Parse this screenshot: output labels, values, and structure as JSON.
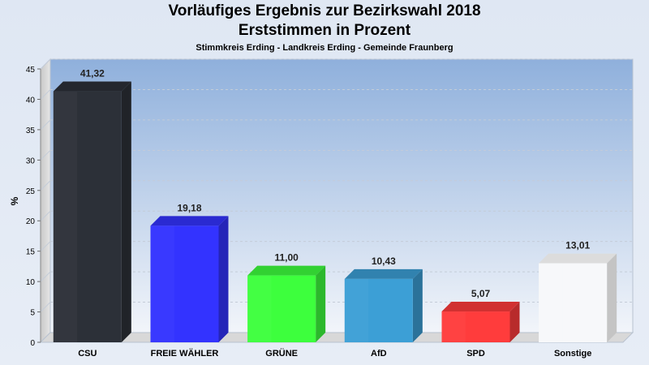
{
  "chart_data": {
    "type": "bar",
    "title": "Vorläufiges Ergebnis zur Bezirkswahl 2018",
    "title2": "Erststimmen in Prozent",
    "subtitle": "Stimmkreis Erding - Landkreis Erding - Gemeinde Fraunberg",
    "xlabel": "",
    "ylabel": "%",
    "ylim": [
      0,
      45
    ],
    "yticks": [
      0,
      5,
      10,
      15,
      20,
      25,
      30,
      35,
      40,
      45
    ],
    "grid": true,
    "categories": [
      "CSU",
      "FREIE WÄHLER",
      "GRÜNE",
      "AfD",
      "SPD",
      "Sonstige"
    ],
    "values": [
      41.32,
      19.18,
      11.0,
      10.43,
      5.07,
      13.01
    ],
    "value_labels": [
      "41,32",
      "19,18",
      "11,00",
      "10,43",
      "5,07",
      "13,01"
    ],
    "colors": [
      "#2c3038",
      "#3333ff",
      "#3dff3d",
      "#3c9fd6",
      "#ff3c3c",
      "#f7f8fa"
    ]
  }
}
